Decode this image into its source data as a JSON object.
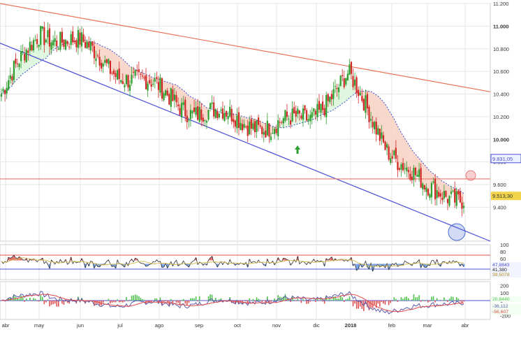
{
  "colors": {
    "background": "#ffffff",
    "grid": "#e6e6e6",
    "up_candle": "#2e9e2e",
    "down_candle": "#d12828",
    "upper_trendline": "#e8735a",
    "lower_trendline": "#4a4fd6",
    "resistance_line": "#f07a6a",
    "fill_below": "#d9f5d9",
    "fill_above": "#f7cfc0",
    "ma_dotted": "#3b4fd0",
    "price_badge": "#f2d44a",
    "rsi_upper": "#e05050",
    "rsi_lower": "#4a4fd6",
    "rsi_ma": "#d2b84a",
    "rsi_fill_up": "#e86a6a",
    "rsi_fill_down": "#6f9ee6",
    "macd_hist_pos": "#4ec24e",
    "macd_hist_neg": "#e05050",
    "macd_line": "#5a5aa8",
    "macd_signal": "#e04a4a",
    "highlight_circle_red": "#e87a7a",
    "highlight_circle_blue": "#4a6ad6"
  },
  "chart_data": [
    {
      "type": "candlestick",
      "panel": "price",
      "title": "",
      "x_labels": [
        "abr",
        "may",
        "jun",
        "jul",
        "ago",
        "sep",
        "oct",
        "nov",
        "dic",
        "2018",
        "feb",
        "mar",
        "abr"
      ],
      "y_ticks": [
        "11.200",
        "11.000",
        "10.800",
        "10.600",
        "10.400",
        "10.200",
        "10.000",
        "9.800",
        "9.600",
        "9.400"
      ],
      "ylim": [
        9.1,
        11.2
      ],
      "grid": true,
      "last_price_label": "9.513,30",
      "ma_label": "9.831,05",
      "monthly_closes": [
        10.4,
        10.95,
        10.85,
        10.6,
        10.45,
        10.25,
        10.2,
        10.1,
        10.2,
        10.55,
        9.95,
        9.55,
        9.5
      ],
      "annotations": [
        "upward-arrow",
        "resistance-circle",
        "support-circle"
      ]
    },
    {
      "type": "line",
      "panel": "rsi",
      "y_ticks": [
        "100",
        "80",
        "60",
        "40",
        "20"
      ],
      "ylim": [
        0,
        100
      ],
      "levels": [
        70,
        30
      ],
      "value_labels": [
        "47,8843",
        "41,380",
        "39,5078"
      ]
    },
    {
      "type": "bar",
      "panel": "macd",
      "y_ticks": [
        "200",
        "100",
        "0",
        "-100",
        "-200"
      ],
      "ylim": [
        -250,
        250
      ],
      "value_labels": [
        "20,8440",
        "-36,112",
        "-56,607"
      ]
    }
  ]
}
